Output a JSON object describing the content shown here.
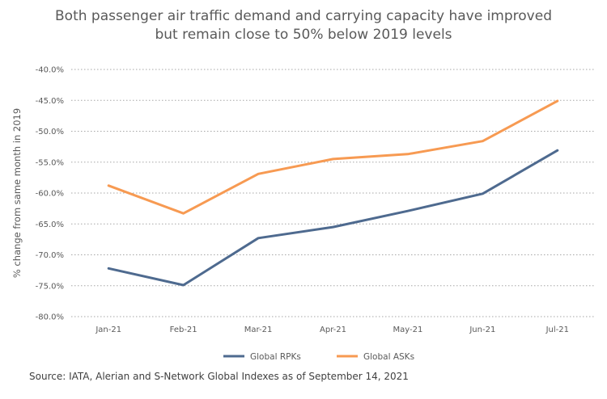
{
  "chart_data": {
    "type": "line",
    "title": "Both passenger air traffic demand and carrying capacity have improved but remain close to 50% below 2019 levels",
    "title_lines": [
      "Both passenger air traffic demand and carrying capacity have improved",
      "but remain close to 50% below 2019 levels"
    ],
    "xlabel": "",
    "ylabel": "% change from same month in 2019",
    "categories": [
      "Jan-21",
      "Feb-21",
      "Mar-21",
      "Apr-21",
      "May-21",
      "Jun-21",
      "Jul-21"
    ],
    "ylim": [
      -80,
      -40
    ],
    "yticks": [
      -40,
      -45,
      -50,
      -55,
      -60,
      -65,
      -70,
      -75,
      -80
    ],
    "ytick_labels": [
      "-40.0%",
      "-45.0%",
      "-50.0%",
      "-55.0%",
      "-60.0%",
      "-65.0%",
      "-70.0%",
      "-75.0%",
      "-80.0%"
    ],
    "grid": true,
    "legend_position": "bottom",
    "series": [
      {
        "name": "Global RPKs",
        "color": "#4E6A8F",
        "values": [
          -72.2,
          -74.9,
          -67.3,
          -65.5,
          -62.9,
          -60.1,
          -53.1
        ]
      },
      {
        "name": "Global ASKs",
        "color": "#F79A52",
        "values": [
          -58.8,
          -63.3,
          -56.9,
          -54.5,
          -53.7,
          -51.6,
          -45.1
        ]
      }
    ],
    "source": "Source: IATA, Alerian and S-Network Global Indexes as of September 14, 2021"
  }
}
